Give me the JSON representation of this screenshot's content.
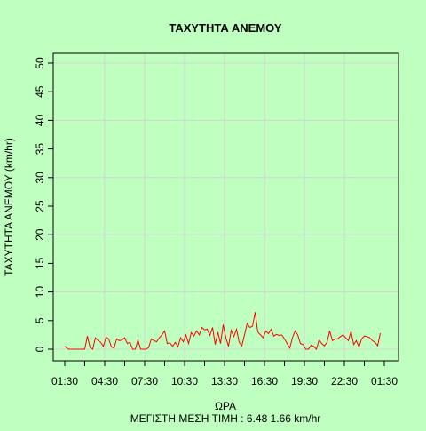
{
  "chart_data": {
    "type": "line",
    "title": "ΤΑΧΥΤΗΤΑ ΑΝΕΜΟΥ",
    "xlabel": "ΩΡΑ",
    "ylabel": "ΤΑΧΥΤΗΤΑ ΑΝΕΜΟΥ  (km/hr)",
    "subtitle": "ΜΕΓΙΣΤΗ ΜΕΣΗ ΤΙΜΗ :  6.48  1.66  km/hr",
    "ylim": [
      0,
      50
    ],
    "xlim": [
      "01:30",
      "01:30"
    ],
    "y_ticks": [
      "0",
      "5",
      "10",
      "15",
      "20",
      "25",
      "30",
      "35",
      "40",
      "45",
      "50"
    ],
    "x_ticks": [
      "01:30",
      "04:30",
      "07:30",
      "10:30",
      "13:30",
      "16:30",
      "19:30",
      "22:30",
      "01:30"
    ],
    "grid": true,
    "series": [
      {
        "color": "#ff0000",
        "points": [
          [
            0.0,
            0.5
          ],
          [
            0.3,
            0.0
          ],
          [
            0.6,
            0.0
          ],
          [
            0.9,
            0.0
          ],
          [
            1.2,
            0.0
          ],
          [
            1.5,
            0.0
          ],
          [
            1.7,
            2.3
          ],
          [
            1.9,
            0.3
          ],
          [
            2.1,
            0.0
          ],
          [
            2.3,
            2.0
          ],
          [
            2.5,
            1.5
          ],
          [
            2.7,
            1.2
          ],
          [
            2.9,
            0.5
          ],
          [
            3.1,
            2.1
          ],
          [
            3.3,
            1.8
          ],
          [
            3.5,
            0.4
          ],
          [
            3.7,
            0.2
          ],
          [
            3.9,
            1.8
          ],
          [
            4.1,
            1.5
          ],
          [
            4.3,
            1.6
          ],
          [
            4.5,
            2.0
          ],
          [
            4.7,
            1.0
          ],
          [
            4.9,
            1.2
          ],
          [
            5.1,
            0.0
          ],
          [
            5.3,
            0.0
          ],
          [
            5.5,
            1.6
          ],
          [
            5.7,
            0.0
          ],
          [
            5.9,
            0.0
          ],
          [
            6.1,
            0.0
          ],
          [
            6.3,
            0.3
          ],
          [
            6.5,
            1.8
          ],
          [
            6.7,
            1.5
          ],
          [
            6.9,
            1.3
          ],
          [
            7.1,
            2.0
          ],
          [
            7.3,
            2.5
          ],
          [
            7.5,
            3.2
          ],
          [
            7.7,
            1.0
          ],
          [
            7.9,
            1.1
          ],
          [
            8.1,
            0.5
          ],
          [
            8.3,
            1.2
          ],
          [
            8.5,
            0.4
          ],
          [
            8.7,
            2.0
          ],
          [
            8.9,
            1.3
          ],
          [
            9.1,
            2.5
          ],
          [
            9.3,
            1.0
          ],
          [
            9.5,
            2.9
          ],
          [
            9.7,
            2.3
          ],
          [
            9.9,
            3.2
          ],
          [
            10.1,
            2.5
          ],
          [
            10.3,
            3.8
          ],
          [
            10.5,
            3.4
          ],
          [
            10.7,
            3.5
          ],
          [
            10.9,
            2.4
          ],
          [
            11.1,
            3.8
          ],
          [
            11.3,
            0.8
          ],
          [
            11.5,
            3.0
          ],
          [
            11.7,
            1.0
          ],
          [
            11.9,
            4.3
          ],
          [
            12.1,
            2.0
          ],
          [
            12.3,
            0.5
          ],
          [
            12.5,
            3.3
          ],
          [
            12.7,
            2.2
          ],
          [
            12.9,
            3.5
          ],
          [
            13.1,
            1.2
          ],
          [
            13.3,
            0.6
          ],
          [
            13.5,
            2.5
          ],
          [
            13.7,
            4.5
          ],
          [
            13.9,
            3.8
          ],
          [
            14.1,
            4.0
          ],
          [
            14.3,
            6.48
          ],
          [
            14.5,
            3.0
          ],
          [
            14.7,
            2.5
          ],
          [
            14.9,
            2.0
          ],
          [
            15.1,
            3.2
          ],
          [
            15.3,
            2.7
          ],
          [
            15.5,
            3.5
          ],
          [
            15.7,
            2.3
          ],
          [
            15.9,
            2.6
          ],
          [
            16.1,
            2.4
          ],
          [
            16.3,
            2.5
          ],
          [
            16.5,
            1.8
          ],
          [
            16.7,
            1.0
          ],
          [
            16.9,
            0.2
          ],
          [
            17.1,
            2.0
          ],
          [
            17.3,
            3.2
          ],
          [
            17.5,
            2.5
          ],
          [
            17.7,
            1.0
          ],
          [
            17.9,
            0.8
          ],
          [
            18.1,
            0.0
          ],
          [
            18.3,
            0.0
          ],
          [
            18.5,
            0.7
          ],
          [
            18.7,
            0.5
          ],
          [
            18.9,
            0.0
          ],
          [
            19.1,
            1.6
          ],
          [
            19.3,
            1.0
          ],
          [
            19.5,
            0.6
          ],
          [
            19.7,
            1.2
          ],
          [
            19.9,
            3.2
          ],
          [
            20.1,
            1.5
          ],
          [
            20.3,
            1.8
          ],
          [
            20.5,
            1.8
          ],
          [
            20.7,
            2.2
          ],
          [
            20.9,
            2.5
          ],
          [
            21.1,
            2.0
          ],
          [
            21.3,
            1.5
          ],
          [
            21.5,
            3.1
          ],
          [
            21.7,
            0.8
          ],
          [
            21.9,
            1.5
          ],
          [
            22.1,
            0.4
          ],
          [
            22.3,
            1.8
          ],
          [
            22.5,
            2.3
          ],
          [
            22.7,
            2.2
          ],
          [
            22.9,
            2.0
          ],
          [
            23.1,
            1.5
          ],
          [
            23.3,
            1.2
          ],
          [
            23.5,
            0.6
          ],
          [
            23.7,
            2.8
          ]
        ]
      }
    ]
  }
}
